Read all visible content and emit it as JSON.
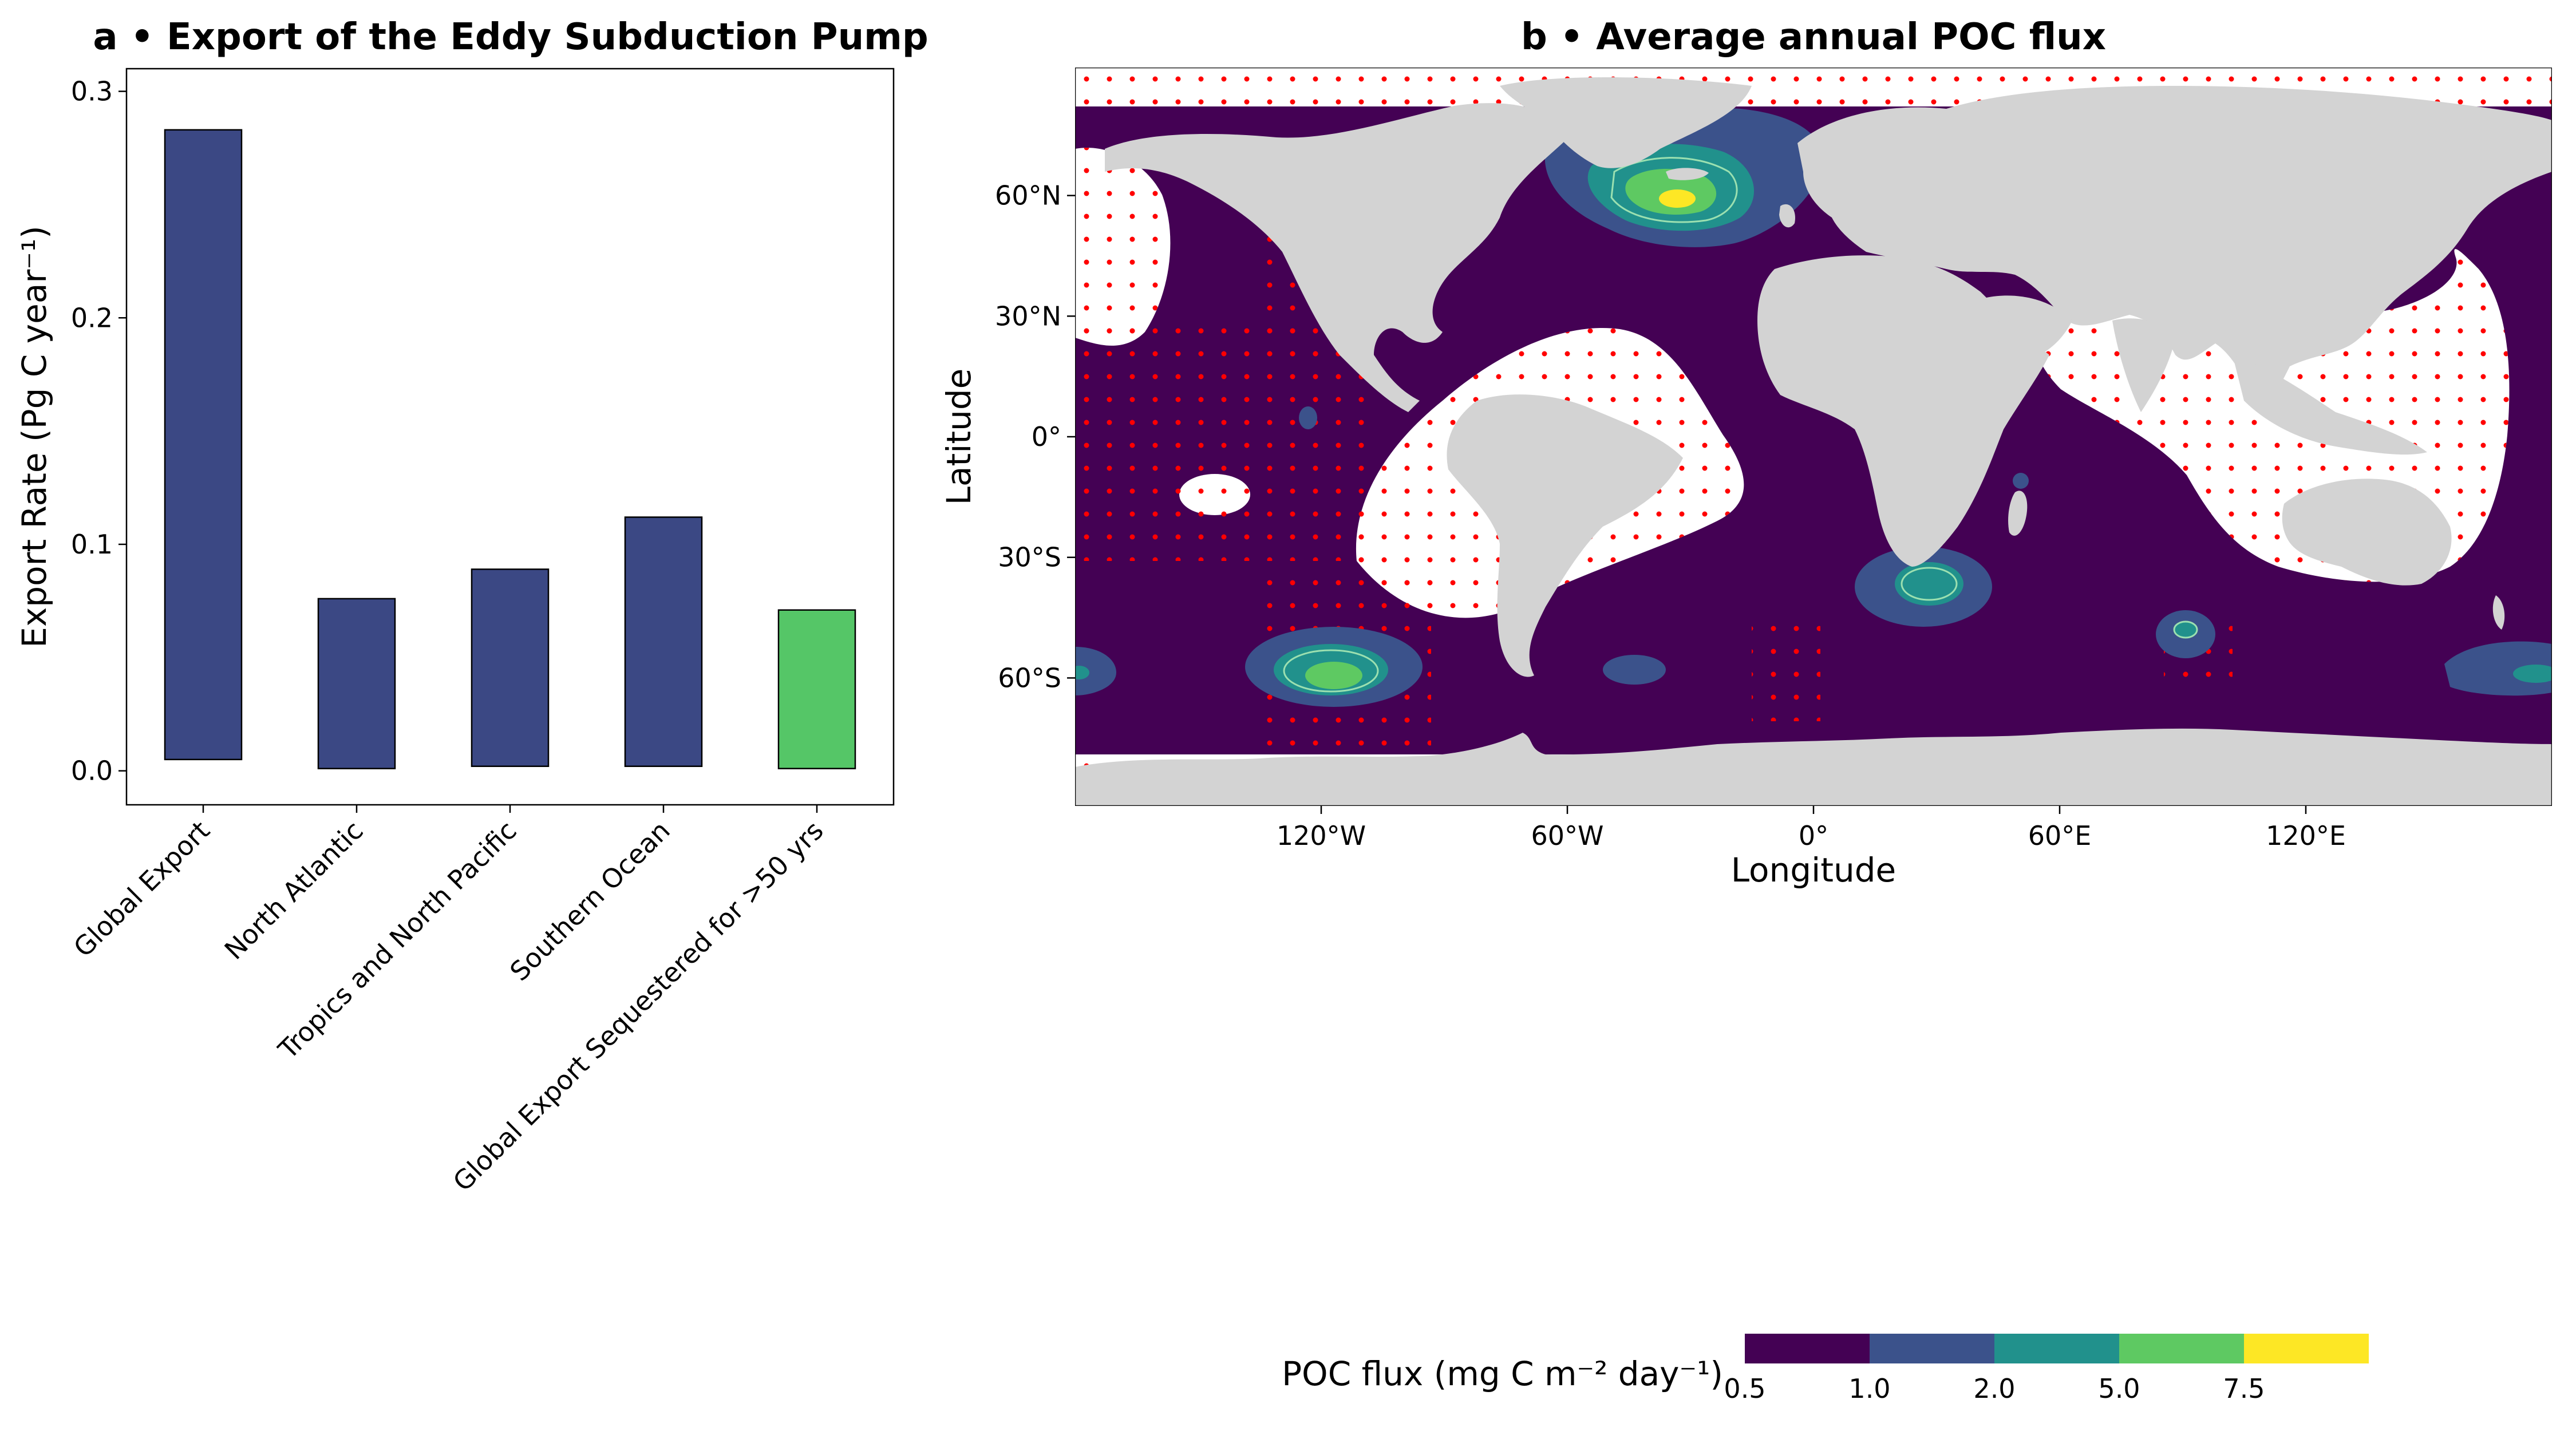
{
  "chart_data": [
    {
      "type": "bar",
      "title": "a • Export of the Eddy Subduction Pump",
      "ylabel": "Export Rate (Pg C year⁻¹)",
      "xlabel": "",
      "ylim": [
        -0.015,
        0.31
      ],
      "yticks": [
        "0.0",
        "0.1",
        "0.2",
        "0.3"
      ],
      "categories": [
        "Global Export",
        "North Atlantic",
        "Tropics and North Pacific",
        "Southern Ocean",
        "Global Export Sequestered for >50 yrs"
      ],
      "series": [
        {
          "values": [
            0.283,
            0.076,
            0.089,
            0.112,
            0.071
          ],
          "bottoms": [
            0.005,
            0.001,
            0.002,
            0.002,
            0.001
          ],
          "colors": [
            "#3b4884",
            "#3b4884",
            "#3b4884",
            "#3b4884",
            "#55c667"
          ]
        }
      ],
      "grid": false
    },
    {
      "type": "heatmap",
      "title": "b • Average annual POC flux",
      "xlabel": "Longitude",
      "ylabel": "Latitude",
      "xlim": [
        -180,
        180
      ],
      "ylim": [
        -90,
        90
      ],
      "xticks": [
        "120°W",
        "60°W",
        "0°",
        "60°E",
        "120°E"
      ],
      "yticks": [
        "60°N",
        "30°N",
        "0°",
        "30°S",
        "60°S"
      ],
      "colorbar": {
        "label": "POC flux (mg C m⁻² day⁻¹)",
        "boundaries": [
          "0.5",
          "1.0",
          "2.0",
          "5.0",
          "7.5"
        ],
        "colors": [
          "#440154",
          "#3b528b",
          "#21918c",
          "#5ec962",
          "#fde725"
        ]
      },
      "colors": {
        "ocean": "#440154",
        "land": "#d3d3d3",
        "stipple": "#ff0000",
        "masked": "#ffffff"
      }
    }
  ]
}
